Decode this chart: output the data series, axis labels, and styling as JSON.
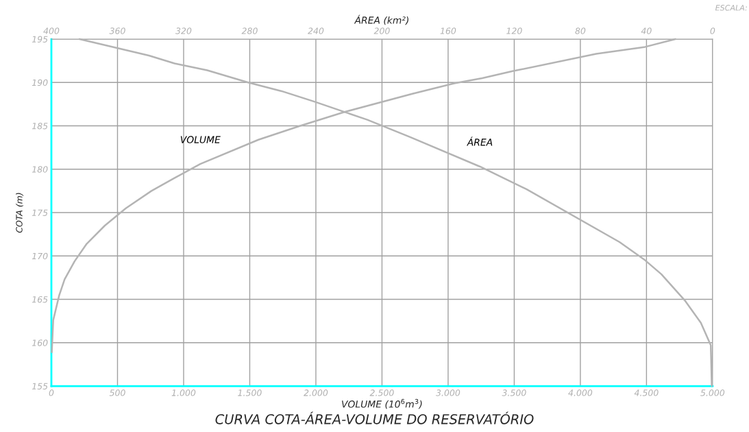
{
  "chart_data": {
    "type": "line",
    "title": "CURVA COTA-ÁREA-VOLUME DO RESERVATÓRIO",
    "xlabel": "VOLUME (10$^{6}$m$^{3}$)",
    "x2label": "ÁREA (km²)",
    "ylabel": "COTA (m)",
    "xlim": [
      0,
      5000
    ],
    "xticks": [
      0,
      500,
      {
        "value": 1000,
        "label": "1.000"
      },
      {
        "value": 1500,
        "label": "1.500"
      },
      {
        "value": 2000,
        "label": "2.000"
      },
      {
        "value": 2500,
        "label": "2.500"
      },
      {
        "value": 3000,
        "label": "3.000"
      },
      {
        "value": 3500,
        "label": "3.500"
      },
      {
        "value": 4000,
        "label": "4.000"
      },
      {
        "value": 4500,
        "label": "4.500"
      },
      {
        "value": 5000,
        "label": "5.000"
      }
    ],
    "x2lim": [
      400,
      0
    ],
    "x2ticks": [
      400,
      360,
      320,
      280,
      240,
      200,
      160,
      120,
      80,
      40,
      0
    ],
    "ylim": [
      155,
      195
    ],
    "yticks": [
      155,
      160,
      165,
      170,
      175,
      180,
      185,
      190,
      195
    ],
    "grid": true,
    "line_style": "solid",
    "marker": "none",
    "series": [
      {
        "name": "VOLUME",
        "color": "#b4b4b4",
        "x": [
          3,
          14,
          58,
          100,
          176,
          267,
          404,
          563,
          757,
          933,
          1126,
          1566,
          1882,
          2217,
          2730,
          3047,
          3258,
          3487,
          4120,
          4490,
          4719
        ],
        "values": [
          158.9,
          162.6,
          165.4,
          167.3,
          169.4,
          171.4,
          173.5,
          175.5,
          177.5,
          179.0,
          180.6,
          183.4,
          185.0,
          186.6,
          188.7,
          189.9,
          190.5,
          191.3,
          193.3,
          194.1,
          195.0
        ]
      },
      {
        "name": "ÁREA",
        "axis": "x2",
        "color": "#b4b4b4",
        "x": [
          383,
          341,
          325.5,
          305.7,
          281,
          260.7,
          241,
          208.9,
          183,
          140.7,
          112.6,
          56.3,
          40.8,
          31.0,
          16.9,
          7.1,
          1.1,
          0.5
        ],
        "values": [
          195.0,
          193.1,
          192.2,
          191.4,
          190.0,
          189.0,
          187.8,
          185.7,
          183.7,
          180.3,
          177.7,
          171.6,
          169.5,
          167.9,
          164.9,
          162.3,
          159.7,
          155.0
        ]
      }
    ],
    "annotations": [
      "ESCALA:"
    ]
  }
}
